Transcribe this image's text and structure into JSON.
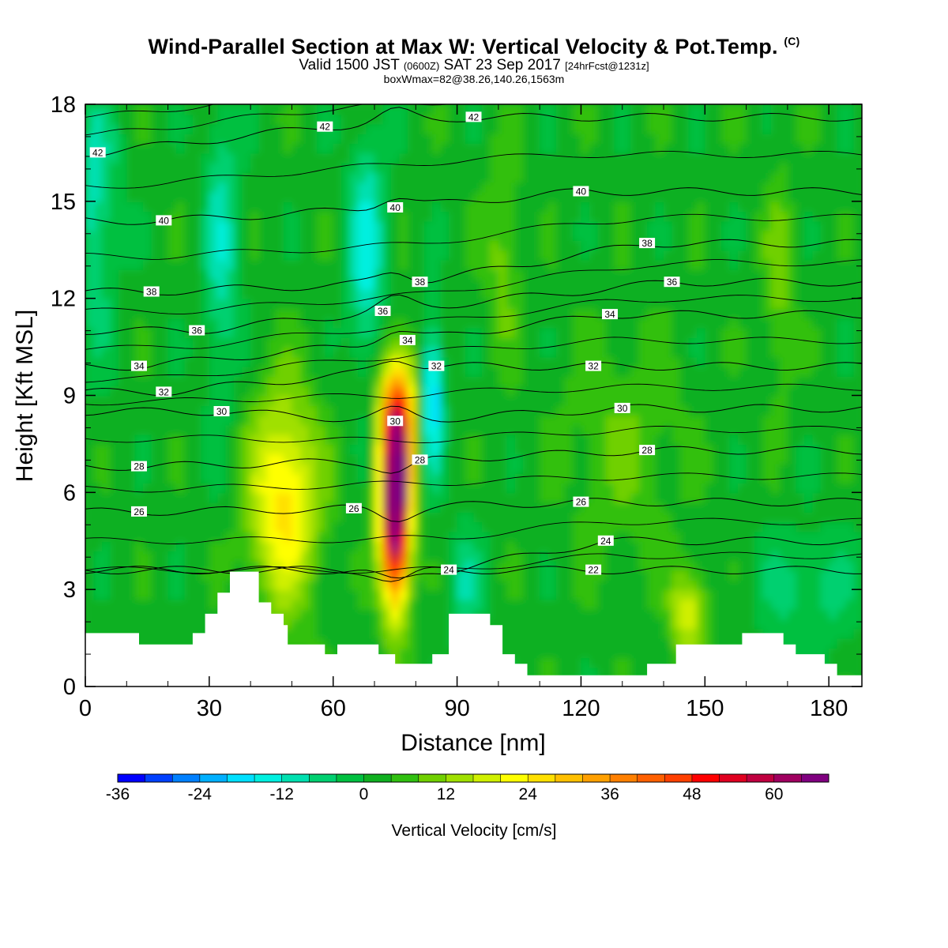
{
  "header": {
    "title": "Wind-Parallel Section at Max W: Vertical Velocity & Pot.Temp.",
    "title_mark": "(C)",
    "valid_a": "Valid 1500 JST",
    "valid_utc": "(0600Z)",
    "valid_b": "SAT 23 Sep 2017",
    "fcst": "[24hrFcst@1231z]",
    "box_info": "boxWmax=82@38.26,140.26,1563m"
  },
  "chart_data": {
    "type": "heatmap",
    "xlabel": "Distance [nm]",
    "ylabel": "Height [Kft MSL]",
    "xlim": [
      0,
      188
    ],
    "ylim": [
      0,
      18
    ],
    "x_ticks": [
      "0",
      "30",
      "60",
      "90",
      "120",
      "150",
      "180"
    ],
    "y_ticks": [
      "0",
      "3",
      "6",
      "9",
      "12",
      "15",
      "18"
    ],
    "colorbar": {
      "title": "Vertical Velocity [cm/s]",
      "ticks": [
        "-36",
        "-24",
        "-12",
        "0",
        "12",
        "24",
        "36",
        "48",
        "60"
      ],
      "min": -36,
      "max": 68,
      "step": 4,
      "colors": [
        "#0000ff",
        "#0040ff",
        "#0080ff",
        "#00b0ff",
        "#00e0ff",
        "#00f0e0",
        "#00e0b0",
        "#00d070",
        "#00c040",
        "#10b020",
        "#30c010",
        "#70d000",
        "#a0e000",
        "#d0f000",
        "#ffff00",
        "#ffe000",
        "#ffc000",
        "#ffa000",
        "#ff8000",
        "#ff6000",
        "#ff4000",
        "#ff0000",
        "#e00020",
        "#c00040",
        "#a00060",
        "#800080"
      ]
    },
    "updrafts": [
      {
        "x": 75,
        "z": 5.8,
        "w": 82
      },
      {
        "x": 48,
        "z": 5.5,
        "w": 28
      },
      {
        "x": 145,
        "z": 2.3,
        "w": 22
      },
      {
        "x": 101,
        "z": 13.5,
        "w": 14
      }
    ],
    "downdrafts": [
      {
        "x": 84,
        "z": 9.0,
        "w": -22
      },
      {
        "x": 68,
        "z": 13.5,
        "w": -14
      },
      {
        "x": 2,
        "z": 15,
        "w": -12
      }
    ],
    "theta_contours": [
      {
        "label": "42",
        "positions": [
          [
            3,
            16.5
          ],
          [
            58,
            17.3
          ],
          [
            94,
            17.6
          ]
        ]
      },
      {
        "label": "40",
        "positions": [
          [
            19,
            14.4
          ],
          [
            75,
            14.8
          ],
          [
            120,
            15.3
          ]
        ]
      },
      {
        "label": "38",
        "positions": [
          [
            16,
            12.2
          ],
          [
            81,
            12.5
          ],
          [
            136,
            13.7
          ]
        ]
      },
      {
        "label": "36",
        "positions": [
          [
            27,
            11.0
          ],
          [
            72,
            11.6
          ],
          [
            142,
            12.5
          ]
        ]
      },
      {
        "label": "34",
        "positions": [
          [
            13,
            9.9
          ],
          [
            78,
            10.7
          ],
          [
            127,
            11.5
          ]
        ]
      },
      {
        "label": "32",
        "positions": [
          [
            19,
            9.1
          ],
          [
            85,
            9.9
          ],
          [
            123,
            9.9
          ]
        ]
      },
      {
        "label": "30",
        "positions": [
          [
            33,
            8.5
          ],
          [
            75,
            8.2
          ],
          [
            130,
            8.6
          ]
        ]
      },
      {
        "label": "28",
        "positions": [
          [
            13,
            6.8
          ],
          [
            81,
            7.0
          ],
          [
            136,
            7.3
          ]
        ]
      },
      {
        "label": "26",
        "positions": [
          [
            13,
            5.4
          ],
          [
            65,
            5.5
          ],
          [
            120,
            5.7
          ]
        ]
      },
      {
        "label": "24",
        "positions": [
          [
            88,
            3.6
          ],
          [
            126,
            4.5
          ]
        ]
      },
      {
        "label": "22",
        "positions": [
          [
            123,
            3.6
          ]
        ]
      }
    ],
    "terrain_kft": [
      [
        0,
        1.65
      ],
      [
        13,
        1.65
      ],
      [
        13,
        1.3
      ],
      [
        26,
        1.3
      ],
      [
        26,
        1.65
      ],
      [
        29,
        1.65
      ],
      [
        29,
        2.25
      ],
      [
        32,
        2.25
      ],
      [
        32,
        2.9
      ],
      [
        35,
        2.9
      ],
      [
        35,
        3.55
      ],
      [
        42,
        3.55
      ],
      [
        42,
        2.6
      ],
      [
        45,
        2.6
      ],
      [
        45,
        2.25
      ],
      [
        48,
        2.25
      ],
      [
        48,
        1.9
      ],
      [
        49,
        1.9
      ],
      [
        49,
        1.3
      ],
      [
        58,
        1.3
      ],
      [
        58,
        1.0
      ],
      [
        61,
        1.0
      ],
      [
        61,
        1.3
      ],
      [
        71,
        1.3
      ],
      [
        71,
        1.0
      ],
      [
        75,
        1.0
      ],
      [
        75,
        0.7
      ],
      [
        84,
        0.7
      ],
      [
        84,
        1.0
      ],
      [
        88,
        1.0
      ],
      [
        88,
        2.25
      ],
      [
        98,
        2.25
      ],
      [
        98,
        1.9
      ],
      [
        101,
        1.9
      ],
      [
        101,
        1.0
      ],
      [
        104,
        1.0
      ],
      [
        104,
        0.7
      ],
      [
        107,
        0.7
      ],
      [
        107,
        0.35
      ],
      [
        136,
        0.35
      ],
      [
        136,
        0.7
      ],
      [
        143,
        0.7
      ],
      [
        143,
        1.3
      ],
      [
        159,
        1.3
      ],
      [
        159,
        1.65
      ],
      [
        169,
        1.65
      ],
      [
        169,
        1.3
      ],
      [
        172,
        1.3
      ],
      [
        172,
        1.0
      ],
      [
        179,
        1.0
      ],
      [
        179,
        0.7
      ],
      [
        182,
        0.7
      ],
      [
        182,
        0.35
      ],
      [
        188,
        0.35
      ]
    ]
  }
}
